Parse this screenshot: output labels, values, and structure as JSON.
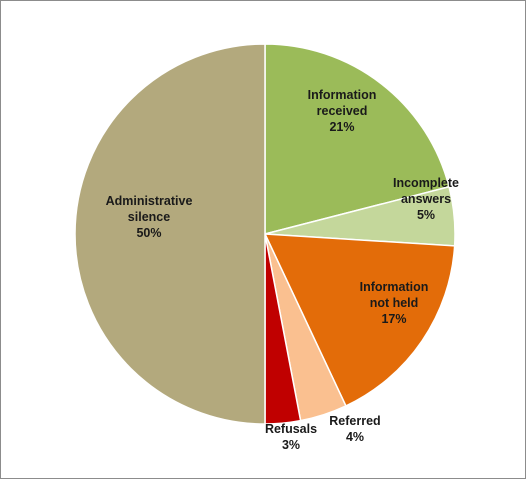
{
  "chart_data": {
    "type": "pie",
    "title": "",
    "start_angle_deg": 0,
    "direction": "clockwise",
    "slices": [
      {
        "label_lines": [
          "Information",
          "received"
        ],
        "value": 21,
        "value_label": "21%",
        "color": "#9bbb59"
      },
      {
        "label_lines": [
          "Incomplete",
          "answers"
        ],
        "value": 5,
        "value_label": "5%",
        "color": "#c4d79b"
      },
      {
        "label_lines": [
          "Information",
          "not held"
        ],
        "value": 17,
        "value_label": "17%",
        "color": "#e36c09"
      },
      {
        "label_lines": [
          "Referred"
        ],
        "value": 4,
        "value_label": "4%",
        "color": "#fac090"
      },
      {
        "label_lines": [
          "Refusals"
        ],
        "value": 3,
        "value_label": "3%",
        "color": "#c00000"
      },
      {
        "label_lines": [
          "Administrative",
          "silence"
        ],
        "value": 50,
        "value_label": "50%",
        "color": "#b3a97d"
      }
    ]
  }
}
